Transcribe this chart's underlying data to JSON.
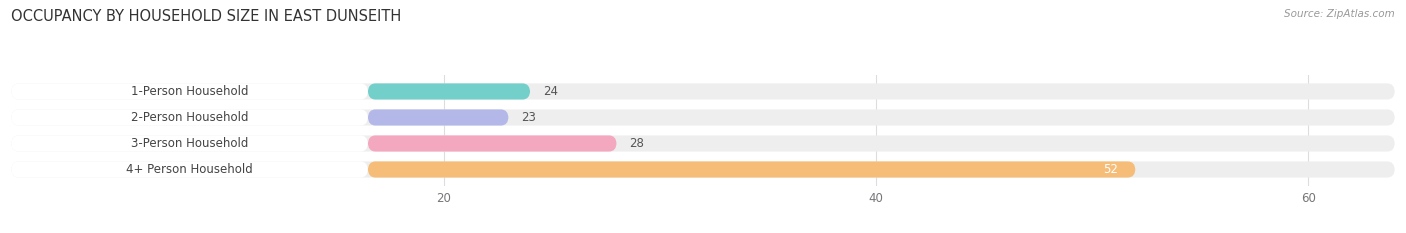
{
  "title": "OCCUPANCY BY HOUSEHOLD SIZE IN EAST DUNSEITH",
  "source": "Source: ZipAtlas.com",
  "categories": [
    "1-Person Household",
    "2-Person Household",
    "3-Person Household",
    "4+ Person Household"
  ],
  "values": [
    24,
    23,
    28,
    52
  ],
  "bar_colors": [
    "#72cfc9",
    "#b4b8e8",
    "#f4a8c0",
    "#f5bd78"
  ],
  "bg_bar_color": "#eeeeee",
  "xlim": [
    0,
    64
  ],
  "xticks": [
    20,
    40,
    60
  ],
  "bar_height": 0.62,
  "label_fontsize": 8.5,
  "title_fontsize": 10.5,
  "value_color_outside": "#555555",
  "value_color_inside": "#ffffff",
  "background_color": "#ffffff",
  "grid_color": "#dddddd",
  "label_color": "#444444",
  "source_color": "#999999",
  "title_color": "#333333"
}
